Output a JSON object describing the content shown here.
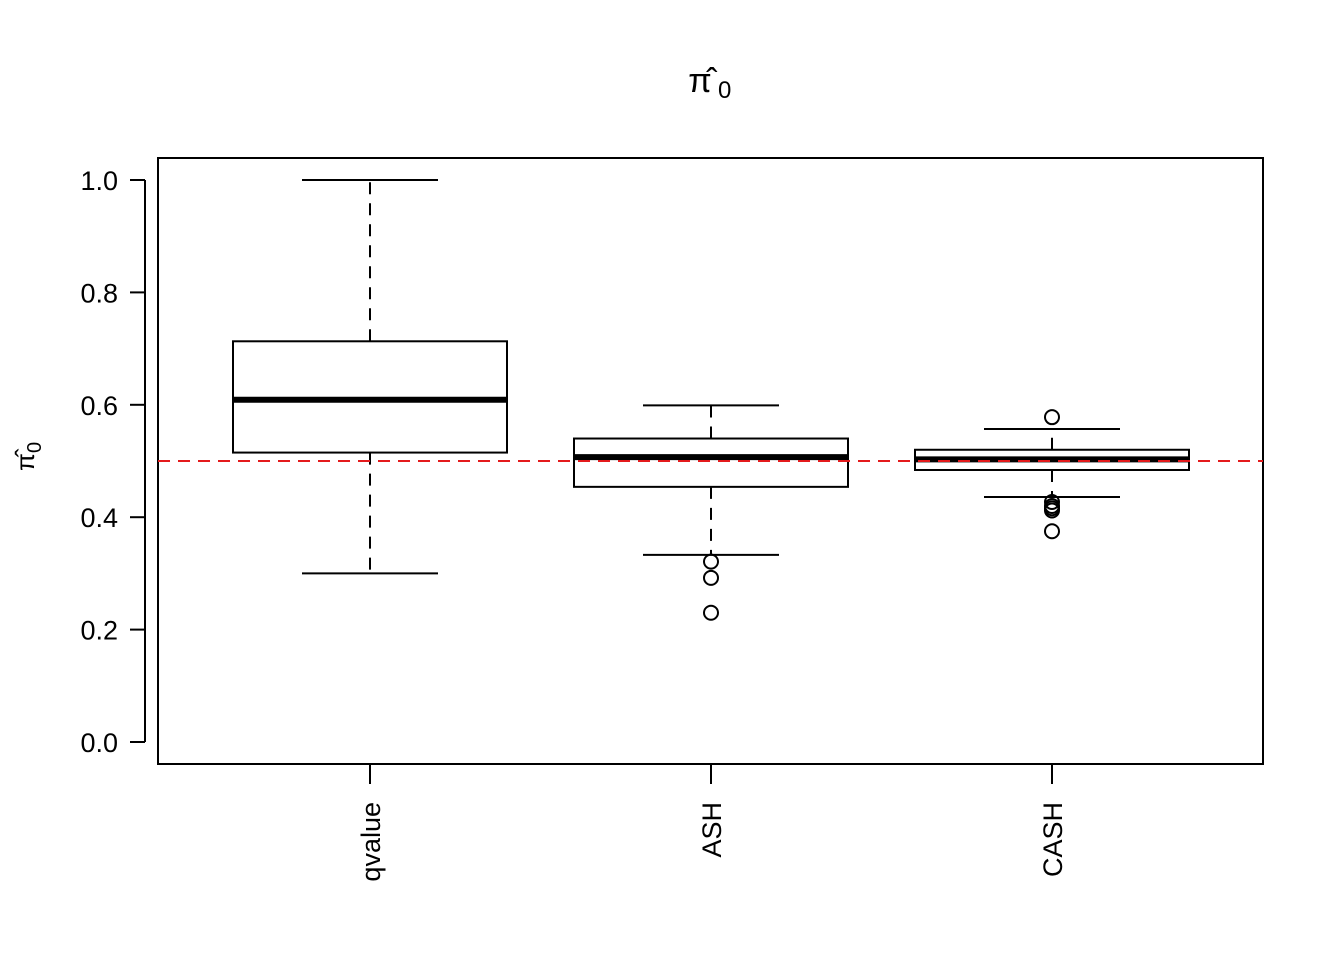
{
  "chart_data": {
    "type": "boxplot",
    "title": "π̂",
    "title_subscript": "0",
    "ylabel": "π̂",
    "ylabel_subscript": "0",
    "xlabel": "",
    "ylim": [
      0,
      1
    ],
    "y_ticks": [
      0.0,
      0.2,
      0.4,
      0.6,
      0.8,
      1.0
    ],
    "y_tick_labels": [
      "0.0",
      "0.2",
      "0.4",
      "0.6",
      "0.8",
      "1.0"
    ],
    "categories": [
      "qvalue",
      "ASH",
      "CASH"
    ],
    "category_label_rotation": "vertical",
    "boxes": [
      {
        "whisker_low": 0.3,
        "q1": 0.515,
        "median": 0.609,
        "q3": 0.713,
        "whisker_high": 1.0,
        "outliers": []
      },
      {
        "whisker_low": 0.333,
        "q1": 0.454,
        "median": 0.507,
        "q3": 0.54,
        "whisker_high": 0.599,
        "outliers": [
          0.321,
          0.292,
          0.23
        ]
      },
      {
        "whisker_low": 0.436,
        "q1": 0.484,
        "median": 0.503,
        "q3": 0.52,
        "whisker_high": 0.557,
        "outliers": [
          0.578,
          0.427,
          0.42,
          0.416,
          0.412,
          0.375
        ]
      }
    ],
    "reference_line": {
      "y": 0.5,
      "color": "#e41a1c",
      "style": "dashed"
    },
    "colors": {
      "box_fill": "#ffffff",
      "box_stroke": "#000000",
      "median": "#000000"
    },
    "grid": false,
    "legend": "none"
  }
}
